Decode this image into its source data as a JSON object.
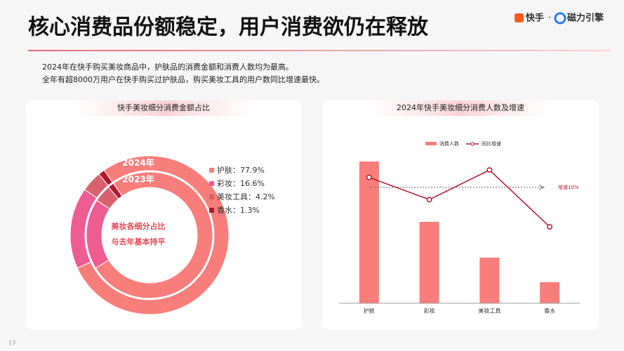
{
  "header": {
    "title": "核心消费品份额稳定，用户消费欲仍在释放",
    "logo_left": "快手",
    "logo_dot": "·",
    "logo_right": "磁力引擎"
  },
  "summary": [
    "2024年在快手购买美妆商品中，护肤品的消费金额和消费人数均为最高。",
    "全年有超8000万用户在快手购买过护肤品，购买美妆工具的用户数同比增速最快。"
  ],
  "page_number": "13",
  "chart_data": [
    {
      "type": "donut",
      "title": "快手美妆细分消费金额占比",
      "categories": [
        "护肤",
        "彩妆",
        "美妆工具",
        "香水"
      ],
      "colors": [
        "#f87e7b",
        "#ee5d91",
        "#d8616e",
        "#b1172c"
      ],
      "series": [
        {
          "name": "2024年",
          "values": [
            77.9,
            16.6,
            4.2,
            1.3
          ],
          "value_labels": [
            "护肤：77.9%",
            "彩妆：16.6%",
            "美妆工具：4.2%",
            "香水：1.3%"
          ]
        },
        {
          "name": "2023年",
          "values": [
            76,
            18,
            4.5,
            1.5
          ]
        }
      ],
      "annotations": [
        "美妆各细分占比",
        "与去年基本持平"
      ]
    },
    {
      "type": "combo",
      "title": "2024年快手美妆细分消费人数及增速",
      "categories": [
        "护肤",
        "彩妆",
        "美妆工具",
        "香水"
      ],
      "ylim": [
        0,
        232
      ],
      "y2lim": [
        -37,
        29
      ],
      "series": [
        {
          "name": "消费人数",
          "color": "#f87e7b",
          "values": [
            202,
            116,
            65,
            30
          ]
        },
        {
          "name": "同比增速",
          "color": "#b1172c",
          "axis": "y2",
          "values": [
            14,
            5,
            17,
            -6
          ]
        }
      ],
      "reference": {
        "value": 10,
        "label": "增速10%"
      }
    }
  ]
}
